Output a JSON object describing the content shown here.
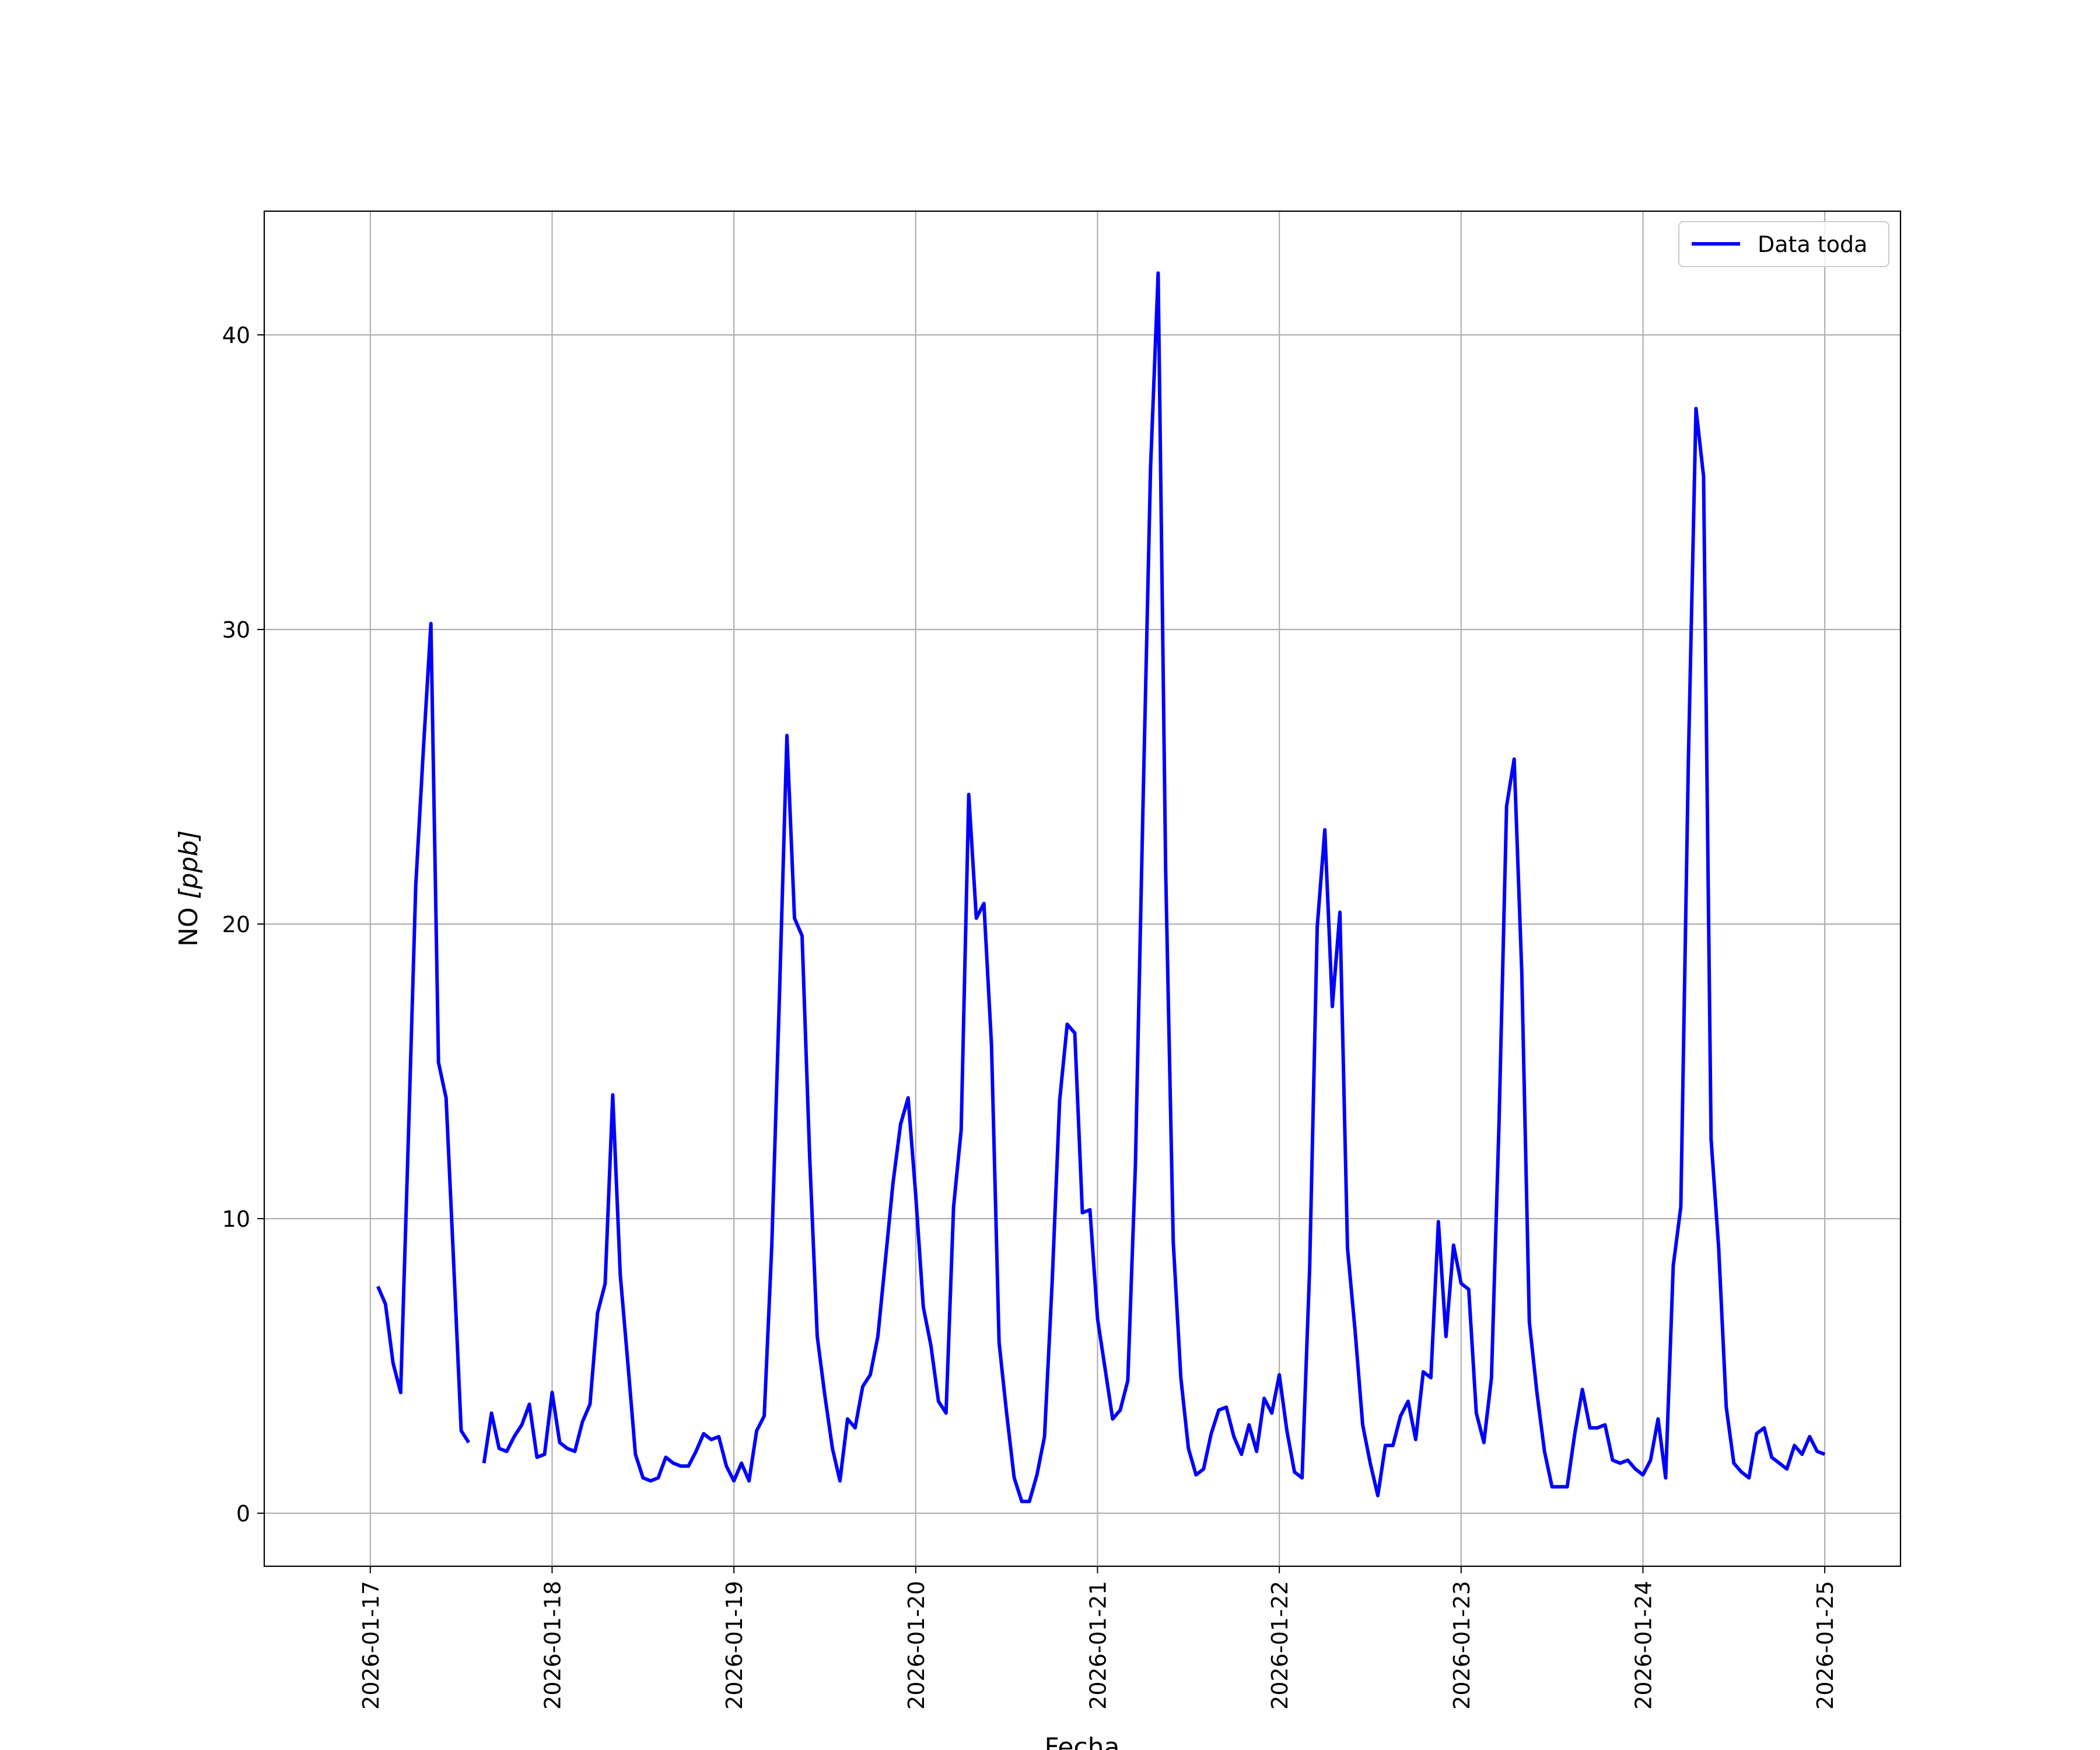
{
  "chart_data": {
    "type": "line",
    "title": "",
    "xlabel": "Fecha",
    "ylabel_main": "NO ",
    "ylabel_unit": "[ppb]",
    "x_ticks": [
      "2026-01-17",
      "2026-01-18",
      "2026-01-19",
      "2026-01-20",
      "2026-01-21",
      "2026-01-22",
      "2026-01-23",
      "2026-01-24",
      "2026-01-25"
    ],
    "y_ticks": [
      0,
      10,
      20,
      30,
      40
    ],
    "xlim": [
      "2026-01-16 10:00",
      "2026-01-25 10:00"
    ],
    "ylim": [
      -1.8,
      44.2
    ],
    "grid": true,
    "legend_position": "upper right",
    "series": [
      {
        "name": "Data toda",
        "color": "#0000ff",
        "time_step_hours": 1,
        "segments": [
          {
            "start": "2026-01-17 01:00",
            "values": [
              7.7,
              7.1,
              5.1,
              4.1,
              12.5,
              21.3,
              25.9,
              30.2,
              15.3,
              14.1,
              8.5,
              2.8,
              2.4
            ]
          },
          {
            "start": "2026-01-17 15:00",
            "values": [
              1.7,
              3.4,
              2.2,
              2.1,
              2.6,
              3.0,
              3.7,
              1.9,
              2.0,
              4.1,
              2.4,
              2.2,
              2.1,
              3.1,
              3.7,
              6.8,
              7.8,
              14.2,
              8.1,
              5.1,
              2.0,
              1.2,
              1.1,
              1.2,
              1.9,
              1.7,
              1.6,
              1.6,
              2.1,
              2.7,
              2.5,
              2.6,
              1.6,
              1.1,
              1.7,
              1.1,
              2.8,
              3.3,
              9.1,
              17.5,
              26.4,
              20.2,
              19.6,
              12.1,
              6.0,
              4.0,
              2.2,
              1.1,
              3.2,
              2.9,
              4.3,
              4.7,
              6.0,
              8.6,
              11.2,
              13.2,
              14.1,
              10.8,
              7.0,
              5.7,
              3.8,
              3.4,
              10.4,
              13.0,
              24.4,
              20.2,
              20.7,
              15.9,
              5.8,
              3.4,
              1.2,
              0.4,
              0.4,
              1.3,
              2.6,
              7.8,
              14.0,
              16.6,
              16.3,
              10.2,
              10.3,
              6.6,
              4.9,
              3.2,
              3.5,
              4.5,
              11.8,
              24.0,
              35.5,
              42.1,
              21.8,
              9.2,
              4.6,
              2.2,
              1.3,
              1.5,
              2.7,
              3.5,
              3.6,
              2.6,
              2.0,
              3.0,
              2.1,
              3.9,
              3.4,
              4.7,
              2.8,
              1.4,
              1.2,
              8.3,
              19.9,
              23.2,
              17.2,
              20.4,
              9.0,
              6.2,
              3.0,
              1.7,
              0.6,
              2.3,
              2.3,
              3.3,
              3.8,
              2.5,
              4.8,
              4.6,
              9.9,
              6.0,
              9.1,
              7.8,
              7.6,
              3.4,
              2.4,
              4.6,
              13.2,
              24.0,
              25.6,
              18.4,
              6.5,
              4.1,
              2.1,
              0.9,
              0.9,
              0.9,
              2.7,
              4.2,
              2.9,
              2.9,
              3.0,
              1.8,
              1.7,
              1.8,
              1.5,
              1.3,
              1.8,
              3.2,
              1.2,
              8.4,
              10.4,
              25.6,
              37.5,
              35.2,
              12.7,
              9.0,
              3.6,
              1.7,
              1.4,
              1.2,
              2.7,
              2.9,
              1.9,
              1.7,
              1.5,
              2.3,
              2.0,
              2.6,
              2.1,
              2.0
            ]
          }
        ]
      }
    ]
  }
}
